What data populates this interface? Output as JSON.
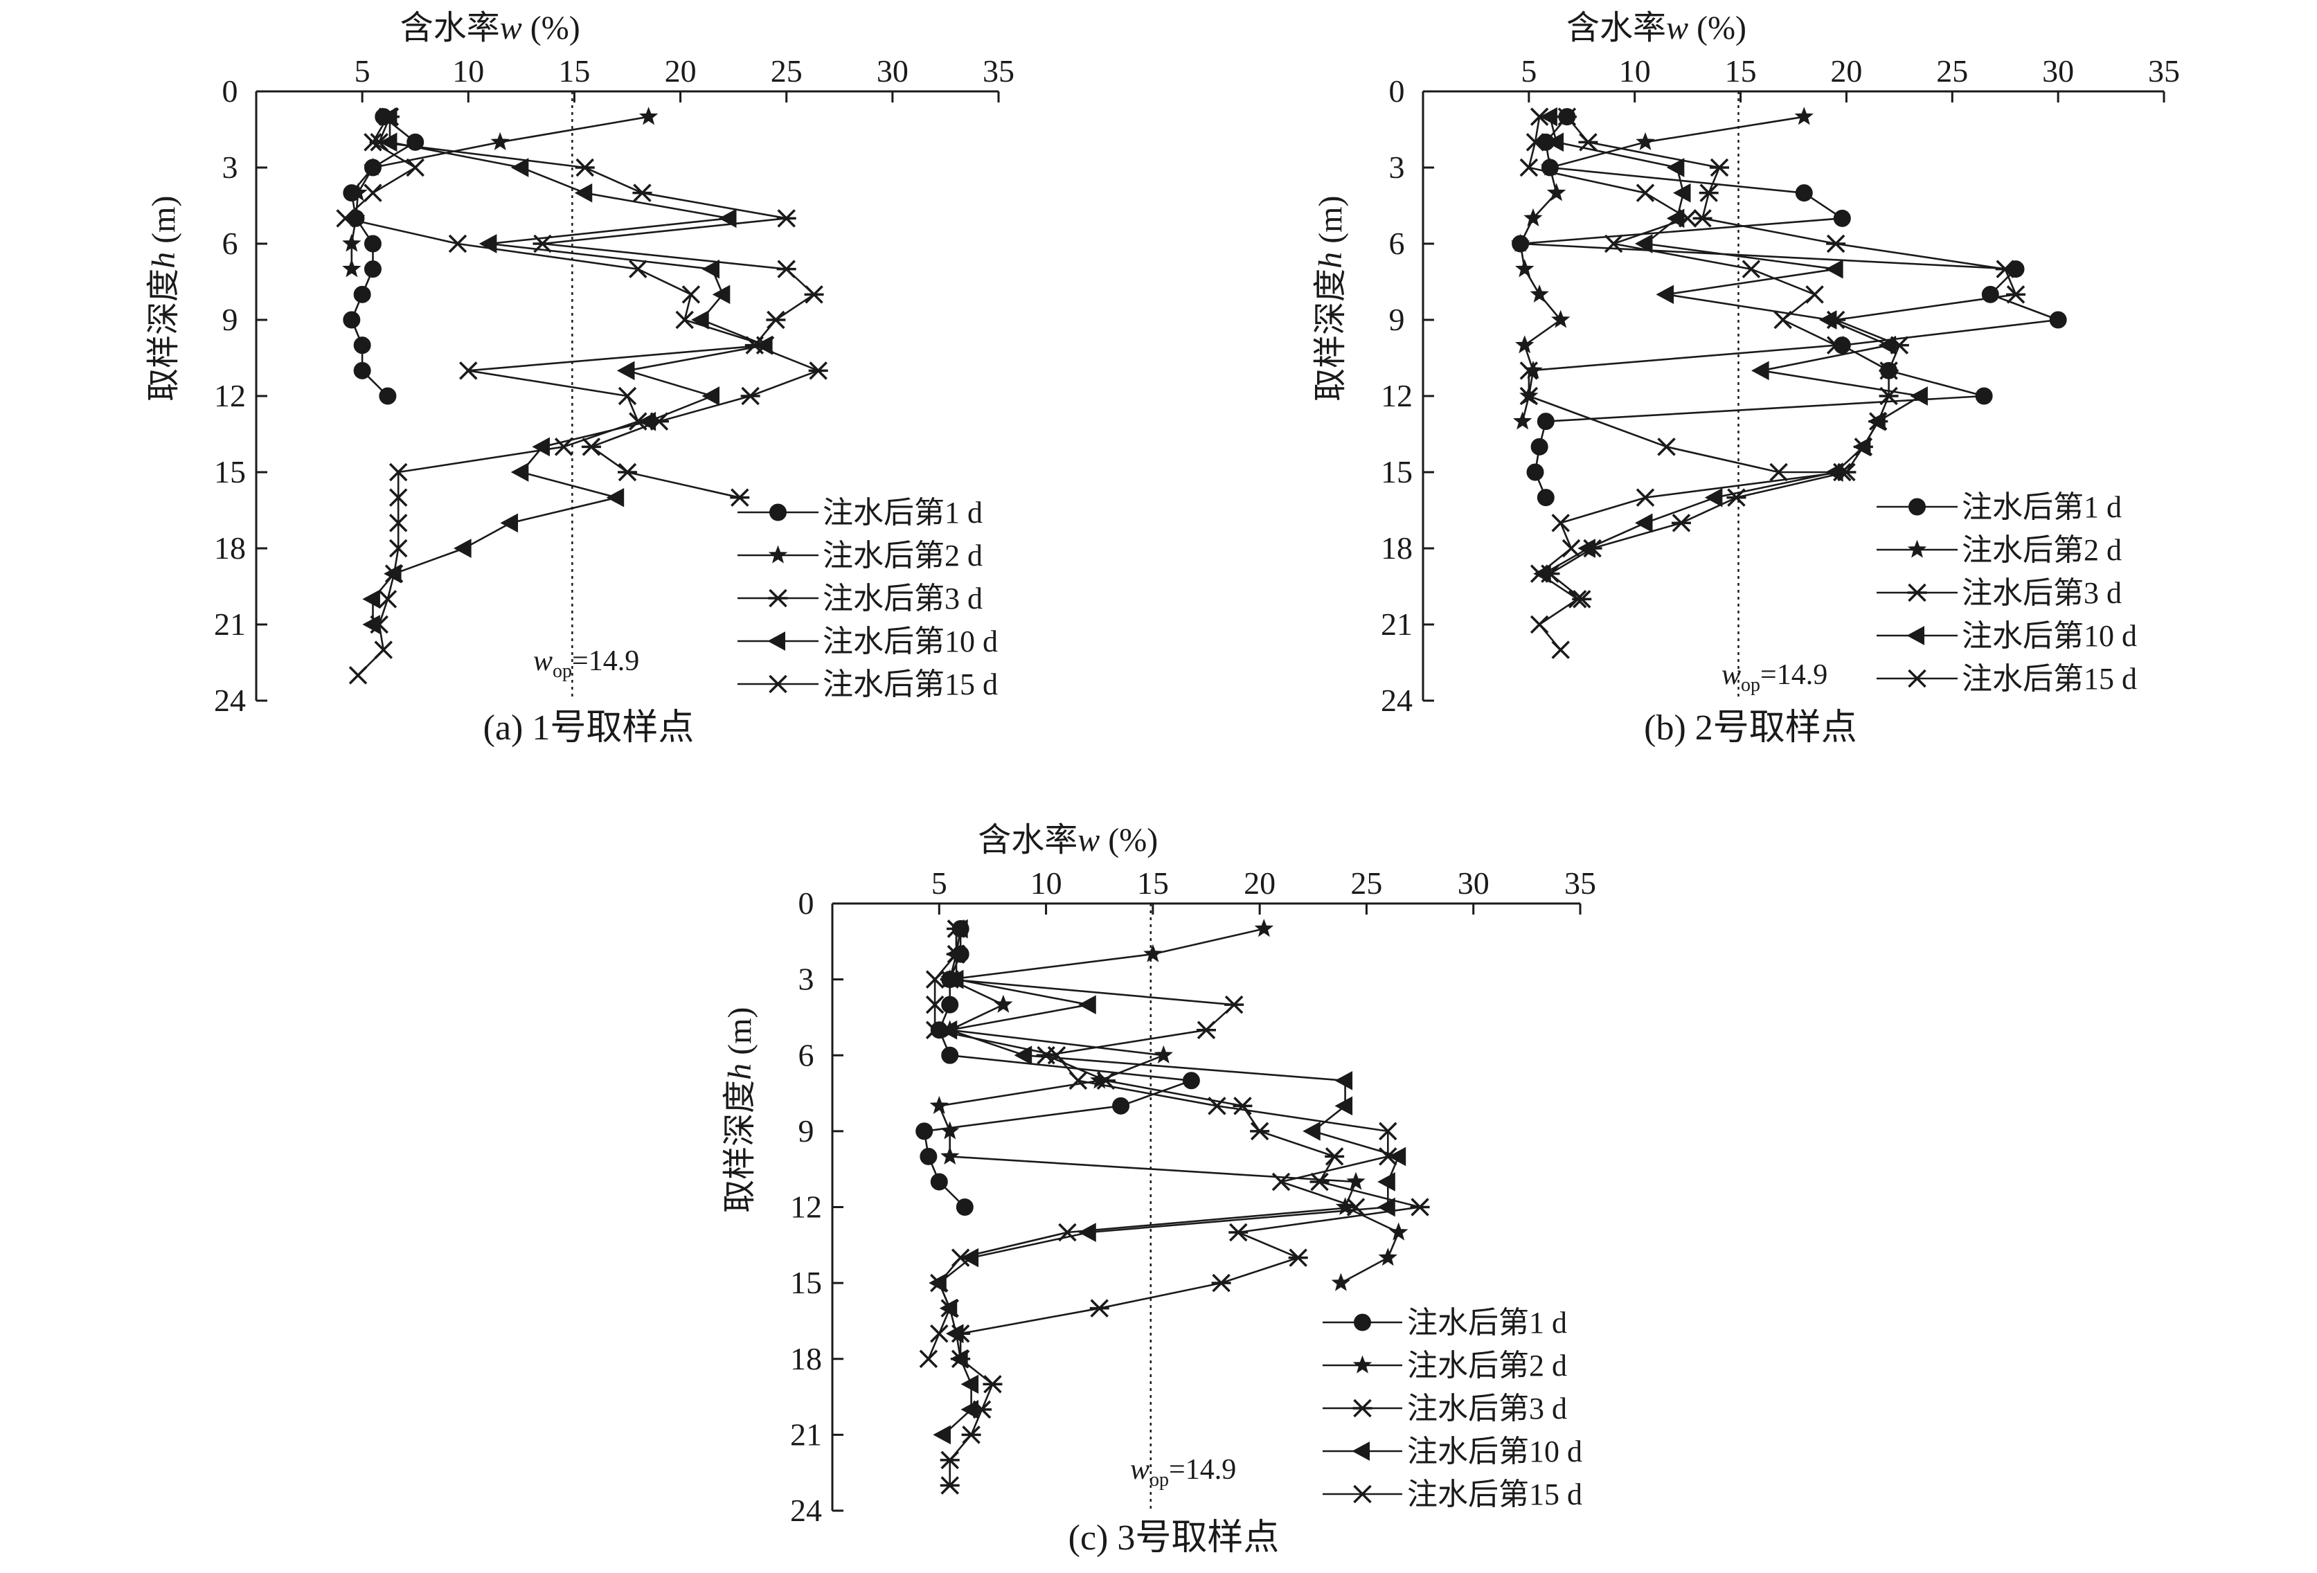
{
  "chart_data": [
    {
      "type": "line",
      "caption": "(a) 1号取样点",
      "xlabel_prefix": "含水率",
      "xlabel_var": "w",
      "xlabel_suffix": " (%)",
      "ylabel_prefix": "取样深度",
      "ylabel_var": "h",
      "ylabel_suffix": " (m)",
      "xlim": [
        0,
        35
      ],
      "ylim": [
        0,
        24
      ],
      "x_ticks": [
        5,
        10,
        15,
        20,
        25,
        30,
        35
      ],
      "y_ticks": [
        0,
        3,
        6,
        9,
        12,
        15,
        18,
        21,
        24
      ],
      "y_inverted": true,
      "x_axis_position": "top",
      "grid": false,
      "legend_position": "bottom-right",
      "reference_line": {
        "x": 14.9,
        "var": "w",
        "sub": "op",
        "value_text": "=14.9"
      },
      "series": [
        {
          "name": "注水后第1 d",
          "marker": "circle",
          "x": [
            6.0,
            7.5,
            5.5,
            4.5,
            4.7,
            5.5,
            5.5,
            5.0,
            4.5,
            5.0,
            5.0,
            6.2
          ],
          "y": [
            1,
            2,
            3,
            4,
            5,
            6,
            7,
            8,
            9,
            10,
            11,
            12
          ]
        },
        {
          "name": "注水后第2 d",
          "marker": "star",
          "x": [
            18.5,
            11.5,
            5.5,
            4.8,
            4.7,
            4.5,
            4.5
          ],
          "y": [
            1,
            2,
            3,
            4,
            5,
            6,
            7
          ]
        },
        {
          "name": "注水后第3 d",
          "marker": "asterisk",
          "x": [
            6.3,
            5.8,
            15.5,
            18.2,
            25.0,
            13.5,
            25.0,
            26.3,
            24.5,
            23.5,
            26.5,
            23.3,
            19.0,
            15.8,
            17.5,
            22.8
          ],
          "y": [
            1,
            2,
            3,
            4,
            5,
            6,
            7,
            8,
            9,
            10,
            11,
            12,
            13,
            14,
            15,
            16
          ]
        },
        {
          "name": "注水后第10 d",
          "marker": "triangle",
          "x": [
            6.3,
            6.3,
            12.5,
            15.5,
            22.3,
            11.0,
            21.5,
            22.0,
            21.0,
            24.0,
            17.5,
            21.5,
            18.5,
            13.5,
            12.5,
            17.0,
            12.0,
            9.8,
            6.5,
            5.5,
            5.5
          ],
          "y": [
            1,
            2,
            3,
            4,
            5,
            6,
            7,
            8,
            9,
            10,
            11,
            12,
            13,
            14,
            15,
            16,
            17,
            18,
            19,
            20,
            21
          ]
        },
        {
          "name": "注水后第15 d",
          "marker": "cross",
          "x": [
            6.2,
            5.5,
            7.5,
            5.5,
            4.2,
            9.5,
            18.0,
            20.5,
            20.2,
            24.0,
            10.0,
            17.5,
            18.0,
            14.5,
            6.7,
            6.7,
            6.7,
            6.7,
            6.5,
            6.2,
            5.8,
            6.0,
            4.8
          ],
          "y": [
            1,
            2,
            3,
            4,
            5,
            6,
            7,
            8,
            9,
            10,
            11,
            12,
            13,
            14,
            15,
            16,
            17,
            18,
            19,
            20,
            21,
            22,
            23
          ]
        }
      ]
    },
    {
      "type": "line",
      "caption": "(b) 2号取样点",
      "xlabel_prefix": "含水率",
      "xlabel_var": "w",
      "xlabel_suffix": " (%)",
      "ylabel_prefix": "取样深度",
      "ylabel_var": "h",
      "ylabel_suffix": " (m)",
      "xlim": [
        0,
        35
      ],
      "ylim": [
        0,
        24
      ],
      "x_ticks": [
        5,
        10,
        15,
        20,
        25,
        30,
        35
      ],
      "y_ticks": [
        0,
        3,
        6,
        9,
        12,
        15,
        18,
        21,
        24
      ],
      "y_inverted": true,
      "x_axis_position": "top",
      "grid": false,
      "legend_position": "bottom-right",
      "reference_line": {
        "x": 14.9,
        "var": "w",
        "sub": "op",
        "value_text": "=14.9"
      },
      "series": [
        {
          "name": "注水后第1 d",
          "marker": "circle",
          "x": [
            6.8,
            5.8,
            6.0,
            18.0,
            19.8,
            4.6,
            28.0,
            26.8,
            30.0,
            19.8,
            22.0,
            26.5,
            5.8,
            5.5,
            5.3,
            5.8
          ],
          "y": [
            1,
            2,
            3,
            4,
            5,
            6,
            7,
            8,
            9,
            10,
            11,
            12,
            13,
            14,
            15,
            16
          ]
        },
        {
          "name": "注水后第2 d",
          "marker": "star",
          "x": [
            18.0,
            10.5,
            6.0,
            6.3,
            5.2,
            4.6,
            4.8,
            5.5,
            6.5,
            4.8,
            5.2,
            5.0,
            4.7
          ],
          "y": [
            1,
            2,
            3,
            4,
            5,
            6,
            7,
            8,
            9,
            10,
            11,
            12,
            13
          ]
        },
        {
          "name": "注水后第3 d",
          "marker": "asterisk",
          "x": [
            6.8,
            7.8,
            14.0,
            13.5,
            13.2,
            19.5,
            27.5,
            28.0,
            19.5,
            22.5,
            22.0,
            22.0,
            21.5,
            20.8,
            20.0,
            14.8,
            12.2,
            8.0,
            6.0,
            7.5
          ],
          "y": [
            1,
            2,
            3,
            4,
            5,
            6,
            7,
            8,
            9,
            10,
            11,
            12,
            13,
            14,
            15,
            16,
            17,
            18,
            19,
            20
          ]
        },
        {
          "name": "注水后第10 d",
          "marker": "triangle",
          "x": [
            6.0,
            6.3,
            12.0,
            12.3,
            12.0,
            10.5,
            19.5,
            11.5,
            19.2,
            22.0,
            16.0,
            23.5,
            21.5,
            20.8,
            19.5,
            13.8,
            10.5,
            7.8,
            5.7
          ],
          "y": [
            1,
            2,
            3,
            4,
            5,
            6,
            7,
            8,
            9,
            10,
            11,
            12,
            13,
            14,
            15,
            16,
            17,
            18,
            19
          ]
        },
        {
          "name": "注水后第15 d",
          "marker": "cross",
          "x": [
            5.5,
            5.3,
            5.0,
            10.5,
            12.5,
            9.0,
            15.5,
            18.5,
            17.0,
            19.5,
            5.0,
            5.0,
            11.5,
            16.8,
            19.8,
            10.5,
            6.5,
            7.0,
            5.5,
            7.3,
            5.5,
            6.5
          ],
          "y": [
            1,
            2,
            3,
            4,
            5,
            6,
            7,
            8,
            9,
            10,
            11,
            12,
            14,
            15,
            15,
            16,
            17,
            18,
            19,
            20,
            21,
            22
          ]
        }
      ]
    },
    {
      "type": "line",
      "caption": "(c) 3号取样点",
      "xlabel_prefix": "含水率",
      "xlabel_var": "w",
      "xlabel_suffix": " (%)",
      "ylabel_prefix": "取样深度",
      "ylabel_var": "h",
      "ylabel_suffix": " (m)",
      "xlim": [
        0,
        35
      ],
      "ylim": [
        0,
        24
      ],
      "x_ticks": [
        5,
        10,
        15,
        20,
        25,
        30,
        35
      ],
      "y_ticks": [
        0,
        3,
        6,
        9,
        12,
        15,
        18,
        21,
        24
      ],
      "y_inverted": true,
      "x_axis_position": "top",
      "grid": false,
      "legend_position": "bottom-right",
      "reference_line": {
        "x": 14.9,
        "var": "w",
        "sub": "op",
        "value_text": "=14.9"
      },
      "series": [
        {
          "name": "注水后第1 d",
          "marker": "circle",
          "x": [
            6.0,
            6.0,
            5.5,
            5.5,
            5.0,
            5.5,
            16.8,
            13.5,
            4.3,
            4.5,
            5.0,
            6.2
          ],
          "y": [
            1,
            2,
            3,
            4,
            5,
            6,
            7,
            8,
            9,
            10,
            11,
            12
          ]
        },
        {
          "name": "注水后第2 d",
          "marker": "star",
          "x": [
            20.2,
            15.0,
            5.5,
            8.0,
            5.5,
            15.5,
            12.5,
            5.0,
            5.5,
            5.5,
            24.5,
            24.0,
            26.5,
            26.0,
            23.8
          ],
          "y": [
            1,
            2,
            3,
            4,
            5,
            6,
            7,
            8,
            9,
            10,
            11,
            12,
            13,
            14,
            15
          ]
        },
        {
          "name": "注水后第3 d",
          "marker": "asterisk",
          "x": [
            5.8,
            5.8,
            5.5,
            18.8,
            17.5,
            10.0,
            12.8,
            19.2,
            20.0,
            23.5,
            22.8,
            27.5,
            19.0,
            21.8,
            18.2,
            12.5,
            6.0,
            6.0,
            7.5,
            7.0,
            6.5,
            5.5,
            5.5
          ],
          "y": [
            1,
            2,
            3,
            4,
            5,
            6,
            7,
            8,
            9,
            10,
            11,
            12,
            13,
            14,
            15,
            16,
            17,
            18,
            19,
            20,
            21,
            22,
            23
          ]
        },
        {
          "name": "注水后第10 d",
          "marker": "triangle",
          "x": [
            6.0,
            5.8,
            5.8,
            12.0,
            5.5,
            9.0,
            24.0,
            24.0,
            22.5,
            26.5,
            26.0,
            26.0,
            12.0,
            6.5,
            5.0,
            5.5,
            5.8,
            6.0,
            6.5,
            6.5,
            5.2
          ],
          "y": [
            1,
            2,
            3,
            4,
            5,
            6,
            7,
            8,
            9,
            10,
            11,
            12,
            13,
            14,
            15,
            16,
            17,
            18,
            19,
            20,
            21
          ]
        },
        {
          "name": "注水后第15 d",
          "marker": "cross",
          "x": [
            5.8,
            5.8,
            4.8,
            4.8,
            4.8,
            10.5,
            11.5,
            18.0,
            26.0,
            26.0,
            21.0,
            24.5,
            11.0,
            6.0,
            5.0,
            5.5,
            5.0,
            4.5
          ],
          "y": [
            1,
            2,
            3,
            4,
            5,
            6,
            7,
            8,
            9,
            10,
            11,
            12,
            13,
            14,
            15,
            16,
            17,
            18
          ]
        }
      ]
    }
  ]
}
